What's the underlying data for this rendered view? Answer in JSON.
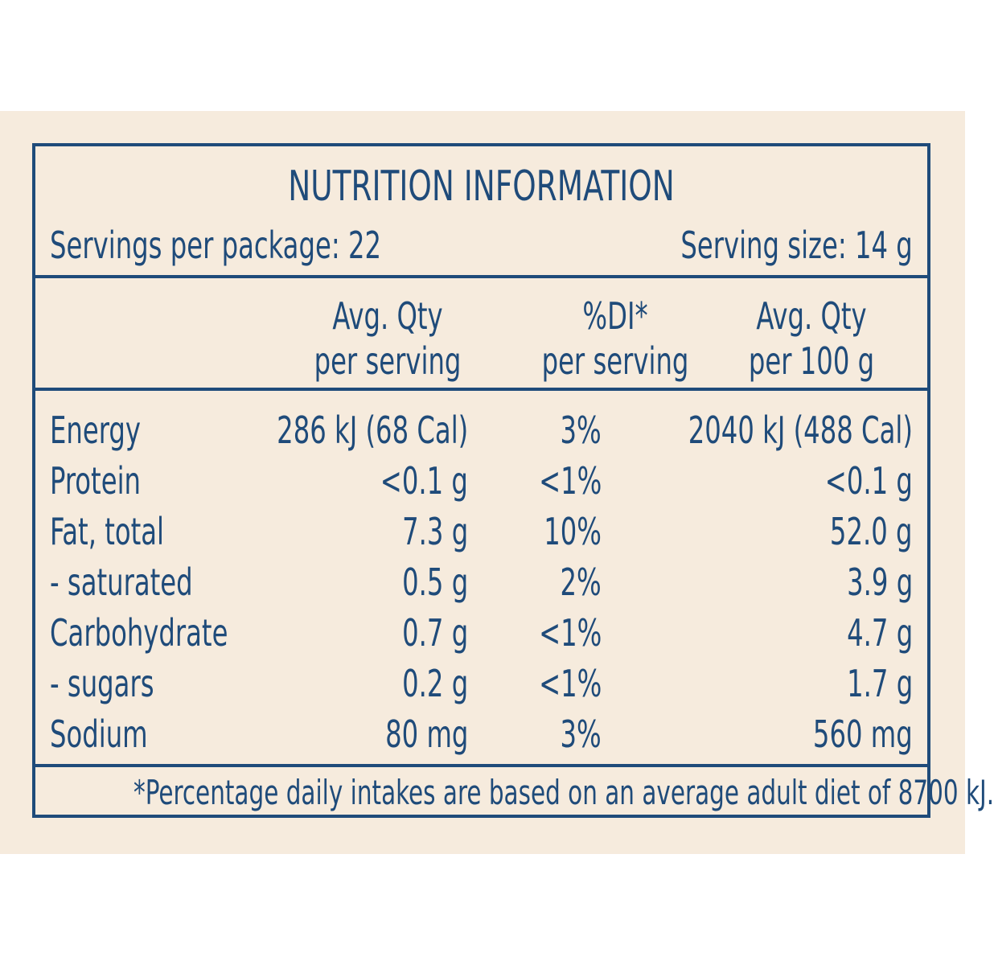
{
  "title": "NUTRITION INFORMATION",
  "servings_per_package": "Servings per package: 22",
  "serving_size": "Serving size: 14 g",
  "columns": [
    {
      "line1": "Avg. Qty",
      "line2": "per serving"
    },
    {
      "line1": "%DI*",
      "line2": "per serving"
    },
    {
      "line1": "Avg. Qty",
      "line2": "per 100 g"
    }
  ],
  "rows": [
    {
      "nutrient": "Energy",
      "per_serving": "286 kJ (68 Cal)",
      "di": "3%",
      "per_100g": "2040 kJ (488 Cal)"
    },
    {
      "nutrient": "Protein",
      "per_serving": "<0.1 g",
      "di": "<1%",
      "per_100g": "<0.1 g"
    },
    {
      "nutrient": "Fat, total",
      "per_serving": "7.3 g",
      "di": "10%",
      "per_100g": "52.0 g"
    },
    {
      "nutrient": "- saturated",
      "per_serving": "0.5 g",
      "di": "2%",
      "per_100g": "3.9 g"
    },
    {
      "nutrient": "Carbohydrate",
      "per_serving": "0.7 g",
      "di": "<1%",
      "per_100g": "4.7 g"
    },
    {
      "nutrient": "- sugars",
      "per_serving": "0.2 g",
      "di": "<1%",
      "per_100g": "1.7 g"
    },
    {
      "nutrient": "Sodium",
      "per_serving": "80 mg",
      "di": "3%",
      "per_100g": "560 mg"
    }
  ],
  "footnote": "*Percentage daily intakes are based on an average adult diet of 8700 kJ.",
  "colors": {
    "ink": "#1f4b7a",
    "background": "#f6ebdd"
  }
}
